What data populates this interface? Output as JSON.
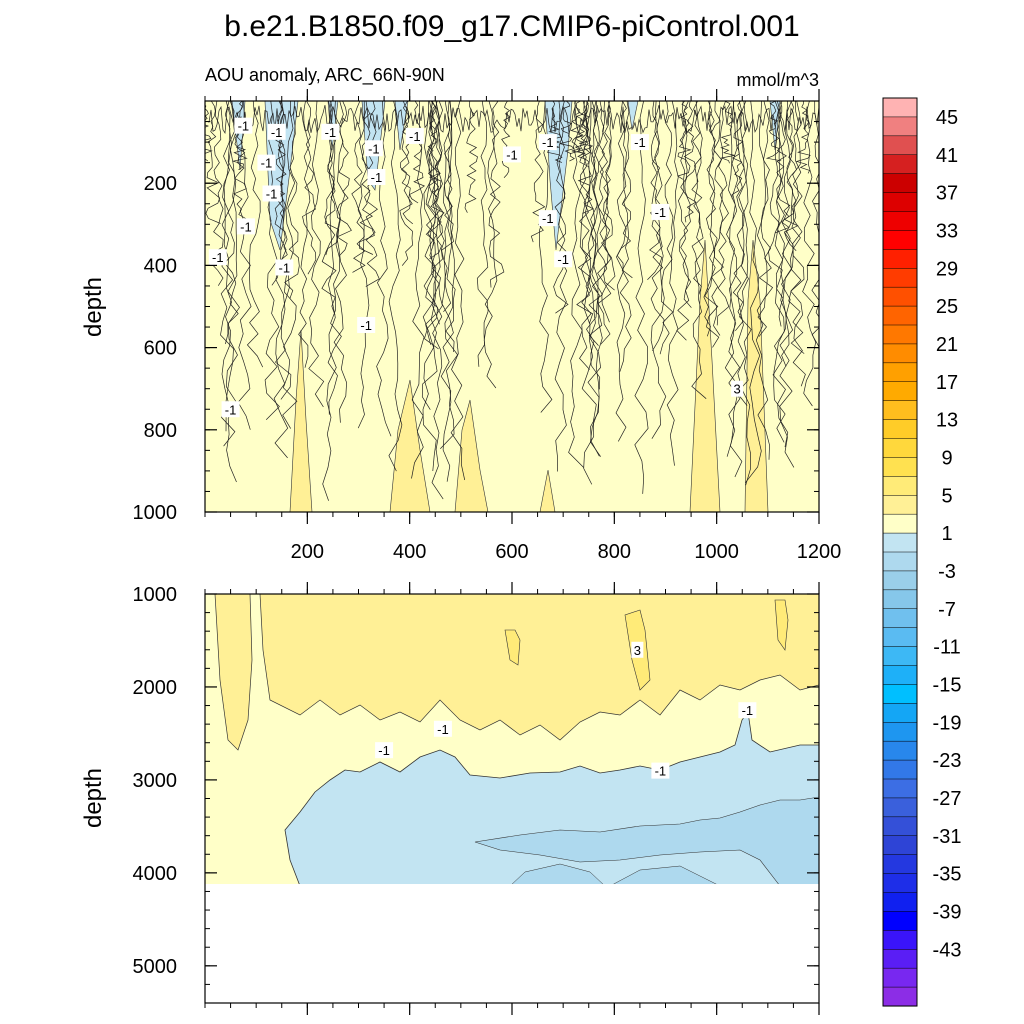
{
  "chart_data": {
    "type": "heatmap",
    "title": "b.e21.B1850.f09_g17.CMIP6-piControl.001",
    "subtitle_left": "AOU anomaly, ARC_66N-90N",
    "subtitle_right": "mmol/m^3",
    "xrange": [
      0,
      1200
    ],
    "x_ticks": [
      200,
      400,
      600,
      800,
      1000,
      1200
    ],
    "upper_panel": {
      "ylabel": "depth",
      "ylim": [
        0,
        1000
      ],
      "y_ticks": [
        200,
        400,
        600,
        800,
        1000
      ],
      "contour_labels": [
        {
          "text": "-1",
          "x": 75,
          "depth": 60
        },
        {
          "text": "-1",
          "x": 140,
          "depth": 75
        },
        {
          "text": "-1",
          "x": 245,
          "depth": 75
        },
        {
          "text": "-1",
          "x": 330,
          "depth": 115
        },
        {
          "text": "-1",
          "x": 410,
          "depth": 85
        },
        {
          "text": "-1",
          "x": 600,
          "depth": 130
        },
        {
          "text": "-1",
          "x": 670,
          "depth": 100
        },
        {
          "text": "-1",
          "x": 850,
          "depth": 100
        },
        {
          "text": "-1",
          "x": 120,
          "depth": 150
        },
        {
          "text": "-1",
          "x": 335,
          "depth": 185
        },
        {
          "text": "-1",
          "x": 130,
          "depth": 225
        },
        {
          "text": "-1",
          "x": 670,
          "depth": 285
        },
        {
          "text": "-1",
          "x": 890,
          "depth": 270
        },
        {
          "text": "-1",
          "x": 80,
          "depth": 305
        },
        {
          "text": "-1",
          "x": 25,
          "depth": 380
        },
        {
          "text": "-1",
          "x": 155,
          "depth": 405
        },
        {
          "text": "-1",
          "x": 700,
          "depth": 385
        },
        {
          "text": "-1",
          "x": 315,
          "depth": 545
        },
        {
          "text": "-1",
          "x": 50,
          "depth": 750
        },
        {
          "text": "3",
          "x": 1040,
          "depth": 700
        }
      ]
    },
    "lower_panel": {
      "ylabel": "depth",
      "ylim": [
        1000,
        5400
      ],
      "y_ticks": [
        1000,
        2000,
        3000,
        4000,
        5000
      ],
      "data_bottom_depth": 4120,
      "contour_labels": [
        {
          "text": "3",
          "x": 845,
          "depth": 1600
        },
        {
          "text": "-1",
          "x": 1060,
          "depth": 2250
        },
        {
          "text": "-1",
          "x": 465,
          "depth": 2450
        },
        {
          "text": "-1",
          "x": 350,
          "depth": 2680
        },
        {
          "text": "-1",
          "x": 890,
          "depth": 2900
        }
      ]
    },
    "colorbar": {
      "labels": [
        "45",
        "41",
        "37",
        "33",
        "29",
        "25",
        "21",
        "17",
        "13",
        "9",
        "5",
        "1",
        "-3",
        "-7",
        "-11",
        "-15",
        "-19",
        "-23",
        "-27",
        "-31",
        "-35",
        "-39",
        "-43"
      ],
      "colors": [
        "#FFB3B3",
        "#F08080",
        "#E05050",
        "#D62020",
        "#CC0000",
        "#DD0000",
        "#EE0000",
        "#FF0000",
        "#FF2000",
        "#FF3C00",
        "#FF5000",
        "#FF6400",
        "#FF7800",
        "#FF8C00",
        "#FFA000",
        "#FFAA00",
        "#FFBE1E",
        "#FFCC28",
        "#FFD83C",
        "#FFE150",
        "#FFEB78",
        "#FFF096",
        "#FFFFC8",
        "#C2E4F2",
        "#AED9EE",
        "#9ACFEA",
        "#86C7EA",
        "#70C0EE",
        "#5ABBF2",
        "#3DB8F5",
        "#1EB0F8",
        "#00BFFF",
        "#14A6F5",
        "#1E96F0",
        "#2887EC",
        "#3278E8",
        "#3C6EE4",
        "#3A60DC",
        "#3450D8",
        "#2E44D6",
        "#2438E0",
        "#1E2EE8",
        "#1020F0",
        "#0000FF",
        "#3A14FA",
        "#5A1EF5",
        "#7828F0",
        "#8C2DE6"
      ]
    }
  }
}
